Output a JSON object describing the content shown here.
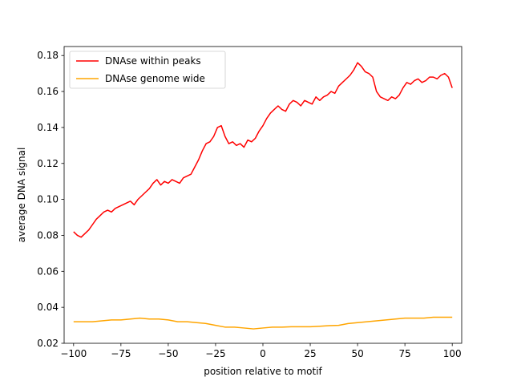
{
  "chart_data": {
    "type": "line",
    "title": "",
    "xlabel": "position relative to motif",
    "ylabel": "average DNA signal",
    "xlim": [
      -105,
      105
    ],
    "ylim": [
      0.02,
      0.185
    ],
    "xticks": [
      -100,
      -75,
      -50,
      -25,
      0,
      25,
      50,
      75,
      100
    ],
    "yticks": [
      0.02,
      0.04,
      0.06,
      0.08,
      0.1,
      0.12,
      0.14,
      0.16,
      0.18
    ],
    "ytick_labels": [
      "0.02",
      "0.04",
      "0.06",
      "0.08",
      "0.10",
      "0.12",
      "0.14",
      "0.16",
      "0.18"
    ],
    "grid": false,
    "legend_position": "top-left",
    "series": [
      {
        "name": "DNAse within peaks",
        "color": "#ff0000",
        "points": [
          [
            -100,
            0.082
          ],
          [
            -98,
            0.08
          ],
          [
            -96,
            0.079
          ],
          [
            -94,
            0.081
          ],
          [
            -92,
            0.083
          ],
          [
            -90,
            0.086
          ],
          [
            -88,
            0.089
          ],
          [
            -86,
            0.091
          ],
          [
            -84,
            0.093
          ],
          [
            -82,
            0.094
          ],
          [
            -80,
            0.093
          ],
          [
            -78,
            0.095
          ],
          [
            -76,
            0.096
          ],
          [
            -74,
            0.097
          ],
          [
            -72,
            0.098
          ],
          [
            -70,
            0.099
          ],
          [
            -68,
            0.097
          ],
          [
            -66,
            0.1
          ],
          [
            -64,
            0.102
          ],
          [
            -62,
            0.104
          ],
          [
            -60,
            0.106
          ],
          [
            -58,
            0.109
          ],
          [
            -56,
            0.111
          ],
          [
            -54,
            0.108
          ],
          [
            -52,
            0.11
          ],
          [
            -50,
            0.109
          ],
          [
            -48,
            0.111
          ],
          [
            -46,
            0.11
          ],
          [
            -44,
            0.109
          ],
          [
            -42,
            0.112
          ],
          [
            -40,
            0.113
          ],
          [
            -38,
            0.114
          ],
          [
            -36,
            0.118
          ],
          [
            -34,
            0.122
          ],
          [
            -32,
            0.127
          ],
          [
            -30,
            0.131
          ],
          [
            -28,
            0.132
          ],
          [
            -26,
            0.135
          ],
          [
            -24,
            0.14
          ],
          [
            -22,
            0.141
          ],
          [
            -20,
            0.135
          ],
          [
            -18,
            0.131
          ],
          [
            -16,
            0.132
          ],
          [
            -14,
            0.13
          ],
          [
            -12,
            0.131
          ],
          [
            -10,
            0.129
          ],
          [
            -8,
            0.133
          ],
          [
            -6,
            0.132
          ],
          [
            -4,
            0.134
          ],
          [
            -2,
            0.138
          ],
          [
            0,
            0.141
          ],
          [
            2,
            0.145
          ],
          [
            4,
            0.148
          ],
          [
            6,
            0.15
          ],
          [
            8,
            0.152
          ],
          [
            10,
            0.15
          ],
          [
            12,
            0.149
          ],
          [
            14,
            0.153
          ],
          [
            16,
            0.155
          ],
          [
            18,
            0.154
          ],
          [
            20,
            0.152
          ],
          [
            22,
            0.155
          ],
          [
            24,
            0.154
          ],
          [
            26,
            0.153
          ],
          [
            28,
            0.157
          ],
          [
            30,
            0.155
          ],
          [
            32,
            0.157
          ],
          [
            34,
            0.158
          ],
          [
            36,
            0.16
          ],
          [
            38,
            0.159
          ],
          [
            40,
            0.163
          ],
          [
            42,
            0.165
          ],
          [
            44,
            0.167
          ],
          [
            46,
            0.169
          ],
          [
            48,
            0.172
          ],
          [
            50,
            0.176
          ],
          [
            52,
            0.174
          ],
          [
            54,
            0.171
          ],
          [
            56,
            0.17
          ],
          [
            58,
            0.168
          ],
          [
            60,
            0.16
          ],
          [
            62,
            0.157
          ],
          [
            64,
            0.156
          ],
          [
            66,
            0.155
          ],
          [
            68,
            0.157
          ],
          [
            70,
            0.156
          ],
          [
            72,
            0.158
          ],
          [
            74,
            0.162
          ],
          [
            76,
            0.165
          ],
          [
            78,
            0.164
          ],
          [
            80,
            0.166
          ],
          [
            82,
            0.167
          ],
          [
            84,
            0.165
          ],
          [
            86,
            0.166
          ],
          [
            88,
            0.168
          ],
          [
            90,
            0.168
          ],
          [
            92,
            0.167
          ],
          [
            94,
            0.169
          ],
          [
            96,
            0.17
          ],
          [
            98,
            0.168
          ],
          [
            100,
            0.162
          ]
        ]
      },
      {
        "name": "DNAse genome wide",
        "color": "#ffa500",
        "points": [
          [
            -100,
            0.032
          ],
          [
            -95,
            0.032
          ],
          [
            -90,
            0.032
          ],
          [
            -85,
            0.0325
          ],
          [
            -80,
            0.033
          ],
          [
            -75,
            0.033
          ],
          [
            -70,
            0.0335
          ],
          [
            -65,
            0.034
          ],
          [
            -60,
            0.0335
          ],
          [
            -55,
            0.0335
          ],
          [
            -50,
            0.033
          ],
          [
            -45,
            0.032
          ],
          [
            -40,
            0.032
          ],
          [
            -35,
            0.0315
          ],
          [
            -30,
            0.031
          ],
          [
            -25,
            0.03
          ],
          [
            -20,
            0.029
          ],
          [
            -15,
            0.029
          ],
          [
            -10,
            0.0285
          ],
          [
            -5,
            0.028
          ],
          [
            0,
            0.0285
          ],
          [
            5,
            0.029
          ],
          [
            10,
            0.029
          ],
          [
            15,
            0.0292
          ],
          [
            20,
            0.0292
          ],
          [
            25,
            0.0292
          ],
          [
            30,
            0.0295
          ],
          [
            35,
            0.0298
          ],
          [
            40,
            0.03
          ],
          [
            45,
            0.031
          ],
          [
            50,
            0.0315
          ],
          [
            55,
            0.032
          ],
          [
            60,
            0.0325
          ],
          [
            65,
            0.033
          ],
          [
            70,
            0.0335
          ],
          [
            75,
            0.034
          ],
          [
            80,
            0.034
          ],
          [
            85,
            0.034
          ],
          [
            90,
            0.0345
          ],
          [
            95,
            0.0345
          ],
          [
            100,
            0.0345
          ]
        ]
      }
    ]
  }
}
